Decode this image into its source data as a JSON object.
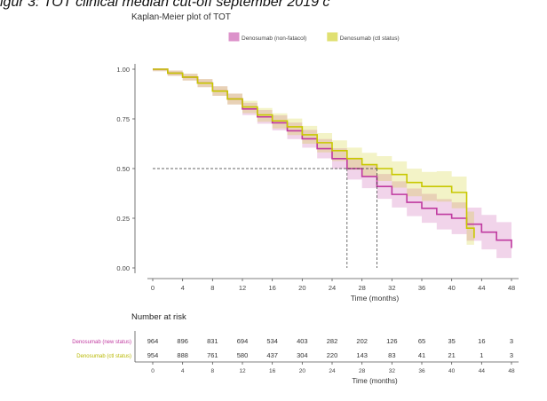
{
  "caption": "igur 3: TOT clinical median cut-off september 2019 c",
  "chart_data": {
    "type": "line",
    "title": "Kaplan-Meier plot of TOT",
    "xlabel": "Time (months)",
    "ylabel": "",
    "xlim": [
      0,
      48
    ],
    "ylim": [
      0,
      1
    ],
    "x_ticks": [
      0,
      4,
      8,
      12,
      16,
      20,
      24,
      28,
      32,
      36,
      40,
      44,
      48
    ],
    "y_ticks": [
      "0.00",
      "0.25",
      "0.50",
      "0.75",
      "1.00"
    ],
    "legend_position": "top",
    "grid": false,
    "series": [
      {
        "name": "Denosumab (non-fatacol)",
        "color": "#c03aa0",
        "points": [
          [
            0,
            1.0
          ],
          [
            2,
            0.98
          ],
          [
            4,
            0.96
          ],
          [
            6,
            0.93
          ],
          [
            8,
            0.89
          ],
          [
            10,
            0.85
          ],
          [
            12,
            0.8
          ],
          [
            14,
            0.76
          ],
          [
            16,
            0.73
          ],
          [
            18,
            0.69
          ],
          [
            20,
            0.65
          ],
          [
            22,
            0.6
          ],
          [
            24,
            0.55
          ],
          [
            26,
            0.5
          ],
          [
            28,
            0.46
          ],
          [
            30,
            0.41
          ],
          [
            32,
            0.37
          ],
          [
            34,
            0.33
          ],
          [
            36,
            0.3
          ],
          [
            38,
            0.27
          ],
          [
            40,
            0.25
          ],
          [
            42,
            0.22
          ],
          [
            44,
            0.18
          ],
          [
            46,
            0.14
          ],
          [
            48,
            0.1
          ]
        ]
      },
      {
        "name": "Denosumab (ctl status)",
        "color": "#c8c800",
        "points": [
          [
            0,
            1.0
          ],
          [
            2,
            0.98
          ],
          [
            4,
            0.96
          ],
          [
            6,
            0.93
          ],
          [
            8,
            0.89
          ],
          [
            10,
            0.85
          ],
          [
            12,
            0.81
          ],
          [
            14,
            0.77
          ],
          [
            16,
            0.74
          ],
          [
            18,
            0.71
          ],
          [
            20,
            0.67
          ],
          [
            22,
            0.63
          ],
          [
            24,
            0.59
          ],
          [
            26,
            0.55
          ],
          [
            28,
            0.52
          ],
          [
            30,
            0.5
          ],
          [
            32,
            0.47
          ],
          [
            34,
            0.43
          ],
          [
            36,
            0.41
          ],
          [
            38,
            0.41
          ],
          [
            40,
            0.38
          ],
          [
            42,
            0.2
          ],
          [
            43,
            0.15
          ]
        ]
      }
    ],
    "median_line": {
      "y": 0.5,
      "x_values": [
        26,
        30
      ]
    },
    "risk_table": {
      "title": "Number at risk",
      "time_points": [
        0,
        4,
        8,
        12,
        16,
        20,
        24,
        28,
        32,
        36,
        40,
        44,
        48
      ],
      "rows": [
        {
          "label": "Denosumab (new status)",
          "color": "#c03aa0",
          "values": [
            "964",
            "896",
            "831",
            "694",
            "534",
            "403",
            "282",
            "202",
            "126",
            "65",
            "35",
            "16",
            "3"
          ]
        },
        {
          "label": "Denosumab (ctl status)",
          "color": "#b8b800",
          "values": [
            "954",
            "888",
            "761",
            "580",
            "437",
            "304",
            "220",
            "143",
            "83",
            "41",
            "21",
            "1",
            "3"
          ]
        }
      ],
      "xlabel": "Time (months)"
    }
  }
}
